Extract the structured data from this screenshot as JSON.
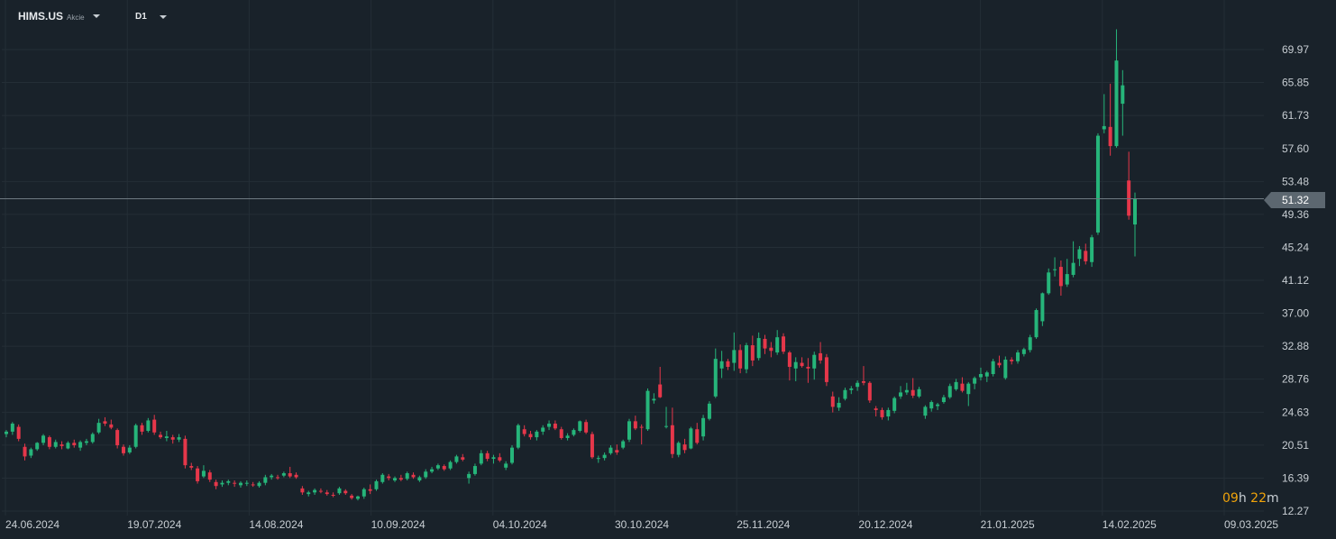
{
  "toolbar": {
    "symbol": "HIMS.US",
    "asset_type": "Akcie",
    "timeframe": "D1"
  },
  "countdown": {
    "hours": "09",
    "hours_unit": "h",
    "minutes": "22",
    "minutes_unit": "m"
  },
  "colors": {
    "background": "#19222a",
    "grid": "#242e36",
    "bullish": "#26b57a",
    "bearish": "#e5374a",
    "axis_text": "#c8ced3",
    "price_line": "#6f7a82",
    "price_label": "#5c6770",
    "countdown_number": "#f0a30a"
  },
  "chart_data": {
    "type": "candlestick",
    "current_price": "51.32",
    "y_ticks": [
      "69.97",
      "65.85",
      "61.73",
      "57.60",
      "53.48",
      "49.36",
      "45.24",
      "41.12",
      "37.00",
      "32.88",
      "28.76",
      "24.63",
      "20.51",
      "16.39",
      "12.27"
    ],
    "x_ticks": [
      "24.06.2024",
      "19.07.2024",
      "14.08.2024",
      "10.09.2024",
      "04.10.2024",
      "30.10.2024",
      "25.11.2024",
      "20.12.2024",
      "21.01.2025",
      "14.02.2025",
      "09.03.2025"
    ],
    "ylim": [
      11.5,
      74.5
    ],
    "grid": true,
    "candles": [
      [
        21.9,
        22.4,
        21.5,
        22.2
      ],
      [
        22.2,
        23.4,
        21.8,
        23.2
      ],
      [
        22.8,
        23.1,
        21.0,
        21.3
      ],
      [
        20.3,
        20.7,
        18.6,
        19.1
      ],
      [
        19.2,
        20.2,
        18.9,
        20.0
      ],
      [
        20.0,
        20.9,
        19.8,
        20.8
      ],
      [
        20.8,
        21.9,
        20.5,
        21.7
      ],
      [
        21.5,
        21.7,
        20.0,
        20.3
      ],
      [
        20.3,
        21.2,
        20.1,
        20.9
      ],
      [
        20.6,
        21.0,
        20.0,
        20.4
      ],
      [
        20.1,
        21.0,
        20.0,
        20.8
      ],
      [
        20.8,
        21.2,
        20.2,
        20.5
      ],
      [
        20.2,
        21.1,
        19.8,
        20.9
      ],
      [
        20.8,
        21.3,
        20.5,
        21.0
      ],
      [
        20.9,
        22.1,
        20.7,
        21.9
      ],
      [
        22.1,
        23.8,
        21.9,
        23.3
      ],
      [
        23.5,
        24.0,
        22.9,
        23.2
      ],
      [
        23.1,
        23.7,
        22.5,
        22.7
      ],
      [
        22.4,
        22.6,
        20.1,
        20.5
      ],
      [
        20.3,
        20.6,
        19.2,
        19.5
      ],
      [
        19.6,
        20.5,
        19.4,
        20.2
      ],
      [
        20.3,
        23.2,
        20.1,
        23.0
      ],
      [
        23.0,
        23.3,
        21.8,
        22.2
      ],
      [
        22.3,
        23.9,
        22.1,
        23.6
      ],
      [
        23.7,
        24.3,
        21.8,
        22.1
      ],
      [
        21.8,
        22.2,
        21.3,
        21.5
      ],
      [
        21.4,
        22.3,
        21.0,
        21.6
      ],
      [
        21.5,
        21.8,
        20.7,
        21.2
      ],
      [
        21.2,
        21.9,
        20.9,
        21.5
      ],
      [
        21.3,
        21.7,
        17.6,
        18.0
      ],
      [
        17.9,
        18.3,
        17.4,
        17.7
      ],
      [
        17.6,
        17.9,
        15.7,
        16.0
      ],
      [
        16.6,
        18.0,
        16.4,
        17.3
      ],
      [
        17.1,
        17.4,
        15.9,
        16.2
      ],
      [
        15.9,
        16.2,
        15.0,
        15.4
      ],
      [
        15.6,
        16.1,
        15.3,
        15.8
      ],
      [
        15.8,
        16.2,
        15.5,
        16.0
      ],
      [
        15.8,
        16.1,
        15.3,
        15.7
      ],
      [
        15.5,
        16.0,
        15.2,
        15.8
      ],
      [
        15.7,
        16.1,
        15.4,
        15.8
      ],
      [
        15.6,
        15.9,
        15.3,
        15.5
      ],
      [
        15.4,
        16.0,
        15.2,
        15.8
      ],
      [
        15.8,
        16.8,
        15.5,
        16.5
      ],
      [
        16.5,
        16.9,
        16.2,
        16.7
      ],
      [
        16.5,
        16.8,
        16.2,
        16.4
      ],
      [
        16.7,
        17.2,
        16.5,
        17.0
      ],
      [
        17.0,
        17.8,
        16.4,
        16.6
      ],
      [
        16.8,
        17.1,
        16.3,
        16.5
      ],
      [
        15.1,
        15.4,
        14.3,
        14.6
      ],
      [
        14.4,
        14.8,
        14.1,
        14.6
      ],
      [
        14.6,
        15.1,
        14.3,
        14.9
      ],
      [
        14.8,
        15.1,
        14.5,
        14.7
      ],
      [
        14.6,
        14.9,
        14.2,
        14.4
      ],
      [
        14.3,
        14.6,
        14.0,
        14.2
      ],
      [
        14.5,
        15.3,
        14.3,
        15.1
      ],
      [
        14.8,
        15.0,
        14.3,
        14.5
      ],
      [
        14.2,
        14.4,
        13.7,
        13.9
      ],
      [
        13.8,
        14.2,
        13.6,
        14.1
      ],
      [
        14.1,
        15.2,
        13.8,
        15.0
      ],
      [
        15.0,
        15.6,
        14.4,
        14.8
      ],
      [
        15.0,
        16.2,
        14.8,
        16.0
      ],
      [
        15.9,
        17.0,
        15.7,
        16.8
      ],
      [
        16.6,
        16.9,
        16.1,
        16.4
      ],
      [
        16.1,
        16.6,
        15.9,
        16.4
      ],
      [
        16.4,
        16.8,
        16.0,
        16.2
      ],
      [
        16.3,
        17.2,
        16.1,
        17.0
      ],
      [
        16.8,
        17.1,
        16.3,
        16.5
      ],
      [
        16.1,
        16.7,
        15.9,
        16.5
      ],
      [
        16.5,
        17.5,
        16.3,
        17.2
      ],
      [
        17.2,
        17.8,
        17.0,
        17.5
      ],
      [
        17.6,
        18.2,
        17.4,
        18.0
      ],
      [
        17.9,
        18.1,
        17.3,
        17.5
      ],
      [
        17.6,
        18.6,
        17.4,
        18.4
      ],
      [
        18.4,
        19.3,
        18.2,
        19.1
      ],
      [
        19.0,
        19.4,
        18.5,
        18.7
      ],
      [
        16.4,
        17.2,
        15.7,
        16.9
      ],
      [
        16.9,
        18.2,
        16.7,
        17.9
      ],
      [
        18.2,
        19.9,
        18.0,
        19.5
      ],
      [
        19.5,
        19.8,
        18.5,
        18.8
      ],
      [
        18.8,
        19.3,
        18.2,
        19.0
      ],
      [
        19.0,
        19.5,
        18.4,
        18.6
      ],
      [
        17.7,
        18.5,
        17.4,
        18.2
      ],
      [
        18.3,
        20.5,
        18.1,
        20.2
      ],
      [
        20.2,
        23.2,
        20.0,
        23.0
      ],
      [
        22.5,
        23.0,
        21.6,
        21.9
      ],
      [
        21.9,
        22.3,
        21.2,
        21.5
      ],
      [
        21.5,
        22.4,
        21.1,
        22.2
      ],
      [
        22.2,
        23.0,
        21.8,
        22.7
      ],
      [
        22.8,
        23.6,
        22.4,
        23.2
      ],
      [
        23.2,
        23.6,
        22.4,
        22.6
      ],
      [
        22.5,
        22.8,
        21.2,
        21.4
      ],
      [
        21.4,
        22.0,
        21.1,
        21.7
      ],
      [
        21.8,
        22.6,
        21.6,
        22.4
      ],
      [
        22.3,
        23.6,
        22.1,
        23.5
      ],
      [
        23.4,
        23.7,
        21.9,
        22.1
      ],
      [
        21.9,
        22.2,
        18.8,
        19.0
      ],
      [
        18.8,
        19.2,
        18.3,
        18.9
      ],
      [
        18.9,
        19.6,
        18.6,
        19.3
      ],
      [
        19.5,
        20.5,
        19.3,
        20.2
      ],
      [
        19.9,
        20.6,
        19.3,
        19.6
      ],
      [
        20.2,
        21.2,
        20.0,
        21.0
      ],
      [
        21.2,
        23.8,
        20.9,
        23.5
      ],
      [
        23.5,
        24.2,
        22.4,
        22.6
      ],
      [
        22.8,
        23.1,
        20.6,
        22.7
      ],
      [
        22.5,
        27.6,
        22.3,
        27.3
      ],
      [
        26.1,
        27.0,
        25.7,
        26.3
      ],
      [
        28.1,
        30.3,
        26.4,
        26.5
      ],
      [
        22.8,
        25.3,
        22.6,
        22.9
      ],
      [
        23.0,
        25.2,
        18.9,
        19.4
      ],
      [
        19.3,
        21.0,
        19.0,
        20.8
      ],
      [
        20.6,
        21.3,
        19.5,
        19.9
      ],
      [
        20.1,
        22.8,
        20.0,
        22.6
      ],
      [
        22.5,
        23.3,
        20.6,
        20.8
      ],
      [
        21.6,
        24.3,
        21.1,
        23.9
      ],
      [
        23.8,
        26.0,
        23.6,
        25.7
      ],
      [
        26.6,
        32.6,
        26.4,
        31.3
      ],
      [
        30.1,
        32.3,
        28.9,
        31.0
      ],
      [
        31.0,
        31.3,
        29.9,
        30.3
      ],
      [
        30.8,
        34.6,
        29.8,
        32.4
      ],
      [
        32.4,
        33.1,
        29.5,
        30.1
      ],
      [
        30.0,
        33.3,
        29.5,
        33.0
      ],
      [
        33.0,
        34.2,
        30.4,
        31.1
      ],
      [
        31.4,
        34.6,
        31.1,
        33.9
      ],
      [
        33.8,
        34.3,
        31.9,
        32.6
      ],
      [
        32.7,
        33.4,
        31.5,
        32.3
      ],
      [
        32.1,
        34.9,
        31.8,
        34.0
      ],
      [
        34.1,
        34.5,
        31.9,
        32.2
      ],
      [
        32.1,
        32.3,
        28.6,
        30.3
      ],
      [
        30.1,
        31.5,
        28.5,
        30.9
      ],
      [
        30.8,
        31.5,
        30.2,
        30.4
      ],
      [
        30.3,
        31.4,
        28.3,
        30.1
      ],
      [
        30.1,
        32.2,
        28.7,
        31.8
      ],
      [
        32.0,
        33.4,
        30.7,
        31.1
      ],
      [
        31.5,
        31.9,
        27.9,
        28.4
      ],
      [
        26.6,
        27.2,
        24.6,
        25.3
      ],
      [
        25.2,
        26.5,
        24.8,
        25.8
      ],
      [
        26.3,
        27.7,
        26.1,
        27.4
      ],
      [
        27.4,
        27.9,
        26.9,
        27.6
      ],
      [
        27.8,
        28.6,
        27.3,
        28.3
      ],
      [
        28.5,
        30.4,
        28.0,
        28.3
      ],
      [
        28.3,
        28.5,
        25.8,
        26.1
      ],
      [
        25.1,
        25.4,
        24.1,
        24.9
      ],
      [
        24.9,
        25.2,
        23.7,
        24.0
      ],
      [
        24.1,
        25.2,
        23.6,
        24.9
      ],
      [
        24.8,
        26.6,
        24.5,
        26.4
      ],
      [
        26.6,
        27.9,
        26.3,
        27.1
      ],
      [
        27.1,
        28.3,
        26.8,
        27.4
      ],
      [
        27.4,
        28.9,
        26.4,
        26.7
      ],
      [
        26.6,
        27.8,
        26.4,
        27.5
      ],
      [
        24.2,
        25.5,
        23.8,
        25.3
      ],
      [
        25.1,
        26.1,
        24.7,
        25.9
      ],
      [
        25.4,
        25.8,
        24.9,
        25.6
      ],
      [
        25.9,
        26.8,
        25.7,
        26.5
      ],
      [
        26.5,
        28.2,
        26.3,
        27.9
      ],
      [
        27.5,
        28.8,
        27.3,
        28.4
      ],
      [
        28.2,
        29.0,
        27.1,
        27.3
      ],
      [
        26.9,
        28.4,
        25.4,
        28.2
      ],
      [
        28.2,
        29.1,
        27.5,
        28.9
      ],
      [
        29.0,
        30.2,
        28.6,
        29.4
      ],
      [
        29.1,
        29.8,
        28.4,
        29.6
      ],
      [
        29.4,
        31.3,
        29.1,
        31.0
      ],
      [
        30.8,
        31.7,
        30.2,
        30.5
      ],
      [
        28.9,
        31.6,
        28.7,
        31.2
      ],
      [
        31.2,
        31.5,
        30.6,
        31.0
      ],
      [
        31.0,
        32.4,
        30.7,
        32.1
      ],
      [
        31.9,
        32.7,
        31.6,
        32.5
      ],
      [
        32.4,
        34.3,
        32.1,
        34.0
      ],
      [
        34.0,
        37.6,
        33.8,
        37.4
      ],
      [
        36.0,
        39.6,
        35.4,
        39.5
      ],
      [
        39.5,
        42.6,
        39.3,
        42.1
      ],
      [
        42.4,
        44.0,
        41.6,
        42.5
      ],
      [
        42.8,
        43.6,
        39.2,
        40.4
      ],
      [
        40.6,
        43.8,
        40.3,
        41.9
      ],
      [
        41.8,
        46.0,
        41.5,
        43.3
      ],
      [
        43.8,
        45.4,
        42.9,
        45.0
      ],
      [
        44.8,
        45.7,
        43.1,
        43.5
      ],
      [
        43.4,
        46.8,
        42.8,
        46.5
      ],
      [
        47.1,
        59.5,
        46.8,
        59.2
      ],
      [
        60.0,
        64.4,
        59.5,
        60.4
      ],
      [
        60.3,
        65.7,
        56.7,
        57.9
      ],
      [
        57.9,
        72.5,
        57.7,
        68.6
      ],
      [
        63.2,
        67.4,
        59.2,
        65.5
      ],
      [
        53.6,
        57.2,
        48.7,
        49.2
      ],
      [
        48.1,
        52.1,
        44.1,
        51.3
      ]
    ]
  }
}
